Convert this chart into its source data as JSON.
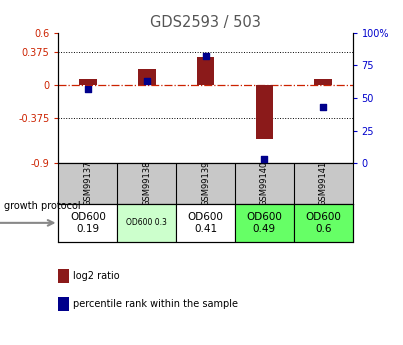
{
  "title": "GDS2593 / 503",
  "samples": [
    "GSM99137",
    "GSM99138",
    "GSM99139",
    "GSM99140",
    "GSM99141"
  ],
  "log2_ratio": [
    0.07,
    0.18,
    0.32,
    -0.62,
    0.07
  ],
  "percentile_rank": [
    57,
    63,
    82,
    3,
    43
  ],
  "ylim_left": [
    -0.9,
    0.6
  ],
  "ylim_right": [
    0,
    100
  ],
  "yticks_left": [
    -0.9,
    -0.375,
    0,
    0.375,
    0.6
  ],
  "yticks_right": [
    0,
    25,
    50,
    75,
    100
  ],
  "ytick_labels_left": [
    "-0.9",
    "-0.375",
    "0",
    "0.375",
    "0.6"
  ],
  "ytick_labels_right": [
    "0",
    "25",
    "50",
    "75",
    "100%"
  ],
  "hlines_dotted": [
    0.375,
    -0.375
  ],
  "hline_zero": 0,
  "bar_color": "#8B1A1A",
  "dot_color": "#00008B",
  "protocol_labels": [
    "OD600\n0.19",
    "OD600 0.3",
    "OD600\n0.41",
    "OD600\n0.49",
    "OD600\n0.6"
  ],
  "protocol_colors": [
    "#ffffff",
    "#ccffcc",
    "#ffffff",
    "#66ff66",
    "#66ff66"
  ],
  "protocol_text_sizes": [
    7.5,
    5.5,
    7.5,
    7.5,
    7.5
  ],
  "sample_bg_color": "#c8c8c8",
  "legend_red": "log2 ratio",
  "legend_blue": "percentile rank within the sample",
  "growth_protocol_label": "growth protocol",
  "bar_width": 0.3,
  "dot_size": 18,
  "title_color": "#555555",
  "left_axis_color": "#cc2200",
  "right_axis_color": "#0000cc",
  "zero_line_color": "#cc2200",
  "dotted_line_color": "#000000"
}
